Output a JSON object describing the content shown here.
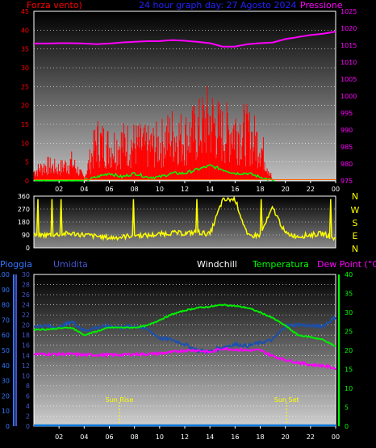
{
  "header": {
    "left_label": "Forza vento)",
    "center_label": "24 hour graph day: 27 Agosto 2024",
    "right_label": "Pressione"
  },
  "colors": {
    "wind": "#ff0000",
    "wind_gust": "#00ff00",
    "pressure": "#ff00ff",
    "direction": "#ffff00",
    "rain": "#0077dd",
    "humidity": "#1a50b0",
    "temperature": "#00ee00",
    "dewpoint": "#ff00ff",
    "left_axis_red": "#ff0000",
    "rain_axis": "#3377ff",
    "humidity_axis": "#4455cc",
    "temp_axis": "#00ff00",
    "label_blue": "#2222ff"
  },
  "x_ticks": [
    "02",
    "04",
    "06",
    "08",
    "10",
    "12",
    "14",
    "16",
    "18",
    "20",
    "22",
    "00"
  ],
  "compass": [
    "N",
    "W",
    "S",
    "E",
    "N"
  ],
  "bottom_header": {
    "rain": "Pioggia",
    "humidity": "Umidita",
    "windchill": "Windchill",
    "temperature": "Temperatura",
    "dewpoint": "Dew Point (°C)"
  },
  "events": {
    "sunrise": "Sun Rise",
    "sunset": "Sun Set"
  },
  "chart_data": [
    {
      "type": "bar",
      "title": "24 hour graph day: 27 Agosto 2024",
      "ylabel": "Forza vento)",
      "y2label": "Pressione",
      "ylim": [
        0,
        45
      ],
      "y2lim": [
        975,
        1025
      ],
      "yticks": [
        0,
        5,
        10,
        15,
        20,
        25,
        30,
        35,
        40,
        45
      ],
      "y2ticks": [
        975,
        980,
        985,
        990,
        995,
        1000,
        1005,
        1010,
        1015,
        1020,
        1025
      ],
      "x_hours": [
        0,
        1,
        2,
        3,
        4,
        5,
        6,
        7,
        8,
        9,
        10,
        11,
        12,
        13,
        14,
        15,
        16,
        17,
        18,
        19,
        20,
        21,
        22,
        23,
        24
      ],
      "series": [
        {
          "name": "Forza vento",
          "values": [
            3,
            5,
            4,
            6,
            1,
            13,
            11,
            12,
            12,
            11,
            12,
            15,
            14,
            16,
            20,
            15,
            17,
            15,
            12,
            0,
            0,
            0,
            0,
            0,
            0
          ]
        },
        {
          "name": "",
          "values": [
            0,
            0,
            0,
            0,
            0,
            1,
            2,
            1,
            2,
            1,
            1,
            2,
            2,
            3,
            4,
            3,
            2,
            2,
            1,
            0,
            0,
            0,
            0,
            0,
            0
          ]
        },
        {
          "name": "Pressione",
          "values": [
            1015.5,
            1015.5,
            1015.6,
            1015.6,
            1015.5,
            1015.3,
            1015.5,
            1015.8,
            1016,
            1016.2,
            1016.2,
            1016.5,
            1016.3,
            1016,
            1015.6,
            1014.6,
            1014.6,
            1015.3,
            1015.6,
            1015.8,
            1016.8,
            1017.4,
            1018,
            1018.4,
            1019
          ]
        }
      ]
    },
    {
      "type": "line",
      "ylim": [
        0,
        360
      ],
      "yticks": [
        0,
        90,
        180,
        270,
        360
      ],
      "x_hours": [
        0,
        1,
        2,
        3,
        4,
        5,
        6,
        7,
        8,
        9,
        10,
        11,
        12,
        13,
        14,
        15,
        16,
        17,
        18,
        19,
        20,
        21,
        22,
        23,
        24
      ],
      "series": [
        {
          "name": "",
          "values": [
            85,
            90,
            95,
            100,
            90,
            80,
            70,
            75,
            90,
            85,
            95,
            105,
            100,
            110,
            95,
            330,
            340,
            80,
            90,
            280,
            100,
            80,
            90,
            100,
            60
          ]
        }
      ]
    },
    {
      "type": "line",
      "ylim_rain": [
        0,
        30
      ],
      "yticks_rain": [
        0,
        2,
        4,
        6,
        8,
        10,
        12,
        14,
        16,
        18,
        20,
        22,
        24,
        26,
        28,
        30
      ],
      "ylim_humidity": [
        0,
        100
      ],
      "yticks_humidity": [
        0,
        10,
        20,
        30,
        40,
        50,
        60,
        70,
        80,
        90,
        100
      ],
      "ylim_temp": [
        0,
        40
      ],
      "yticks_temp": [
        0,
        5,
        10,
        15,
        20,
        25,
        30,
        35,
        40
      ],
      "x_hours": [
        0,
        1,
        2,
        3,
        4,
        5,
        6,
        7,
        8,
        9,
        10,
        11,
        12,
        13,
        14,
        15,
        16,
        17,
        18,
        19,
        20,
        21,
        22,
        23,
        24
      ],
      "series": [
        {
          "name": "Pioggia",
          "values": [
            0,
            0,
            0,
            0,
            0,
            0,
            0,
            0,
            0,
            0,
            0,
            0,
            0,
            0,
            0,
            0,
            0,
            0,
            0,
            0,
            0,
            0,
            0,
            0,
            0
          ]
        },
        {
          "name": "Umidita",
          "values": [
            66,
            66,
            65,
            69,
            63,
            65,
            66,
            65,
            66,
            64,
            58,
            57,
            54,
            50,
            49,
            52,
            54,
            53,
            55,
            57,
            66,
            67,
            66,
            66,
            72
          ]
        },
        {
          "name": "Temperatura",
          "values": [
            25.5,
            25.5,
            25.8,
            26,
            24,
            25,
            26,
            26,
            26,
            26.5,
            28,
            29.5,
            30.5,
            31.2,
            31.5,
            32,
            31.7,
            31.2,
            30,
            28.5,
            26.5,
            24,
            23.5,
            22.8,
            21
          ]
        },
        {
          "name": "Dew Point (°C)",
          "values": [
            19,
            19,
            19,
            19,
            18.8,
            18.8,
            18.8,
            18.8,
            19,
            19,
            19.2,
            19.5,
            20,
            20,
            19.5,
            20.5,
            20.2,
            20,
            20,
            18.5,
            17.5,
            16.8,
            16.2,
            16,
            15.2
          ]
        }
      ],
      "annotations": [
        {
          "label": "Sun Rise",
          "x": 6.8
        },
        {
          "label": "Sun Set",
          "x": 20.1
        }
      ]
    }
  ]
}
